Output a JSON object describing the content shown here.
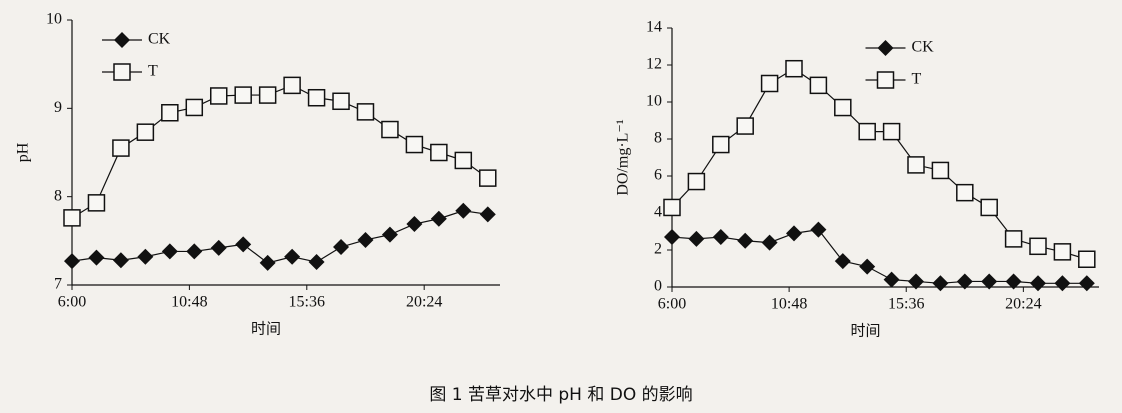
{
  "caption": "图 1  苦草对水中 pH 和 DO 的影响",
  "chart_data": [
    {
      "type": "line",
      "ylabel": "pH",
      "xlabel": "时间",
      "legend": "upper left",
      "xlim": [
        6,
        23.5
      ],
      "ylim": [
        7,
        10
      ],
      "xticks": [
        {
          "value": 6,
          "label": "6:00"
        },
        {
          "value": 10.8,
          "label": "10:48"
        },
        {
          "value": 15.6,
          "label": "15:36"
        },
        {
          "value": 20.4,
          "label": "20:24"
        }
      ],
      "yticks": [
        7,
        8,
        9,
        10
      ],
      "x": [
        6,
        7,
        8,
        9,
        10,
        11,
        12,
        13,
        14,
        15,
        16,
        17,
        18,
        19,
        20,
        21,
        22,
        23
      ],
      "series": [
        {
          "name": "CK",
          "color": "#111111",
          "marker": "diamond",
          "values": [
            7.27,
            7.31,
            7.28,
            7.32,
            7.38,
            7.38,
            7.42,
            7.46,
            7.25,
            7.32,
            7.26,
            7.43,
            7.51,
            7.57,
            7.69,
            7.75,
            7.84,
            7.8
          ]
        },
        {
          "name": "T",
          "color": "#111111",
          "marker": "square",
          "values": [
            7.76,
            7.93,
            8.55,
            8.73,
            8.95,
            9.01,
            9.14,
            9.15,
            9.15,
            9.26,
            9.12,
            9.08,
            8.96,
            8.76,
            8.59,
            8.5,
            8.41,
            8.21
          ]
        }
      ]
    },
    {
      "type": "line",
      "ylabel": "DO/mg·L⁻¹",
      "xlabel": "时间",
      "legend": "upper center",
      "xlim": [
        6,
        23.5
      ],
      "ylim": [
        0,
        14
      ],
      "xticks": [
        {
          "value": 6,
          "label": "6:00"
        },
        {
          "value": 10.8,
          "label": "10:48"
        },
        {
          "value": 15.6,
          "label": "15:36"
        },
        {
          "value": 20.4,
          "label": "20:24"
        }
      ],
      "yticks": [
        0,
        2,
        4,
        6,
        8,
        10,
        12,
        14
      ],
      "x": [
        6,
        7,
        8,
        9,
        10,
        11,
        12,
        13,
        14,
        15,
        16,
        17,
        18,
        19,
        20,
        21,
        22,
        23
      ],
      "series": [
        {
          "name": "CK",
          "color": "#111111",
          "marker": "diamond",
          "values": [
            2.7,
            2.6,
            2.7,
            2.5,
            2.4,
            2.9,
            3.1,
            1.4,
            1.1,
            0.4,
            0.3,
            0.2,
            0.3,
            0.3,
            0.3,
            0.2,
            0.2,
            0.2
          ]
        },
        {
          "name": "T",
          "color": "#111111",
          "marker": "square",
          "values": [
            4.3,
            5.7,
            7.7,
            8.7,
            11.0,
            11.8,
            10.9,
            9.7,
            8.4,
            8.4,
            6.6,
            6.3,
            5.1,
            4.3,
            2.6,
            2.2,
            1.9,
            1.5
          ]
        }
      ]
    }
  ]
}
